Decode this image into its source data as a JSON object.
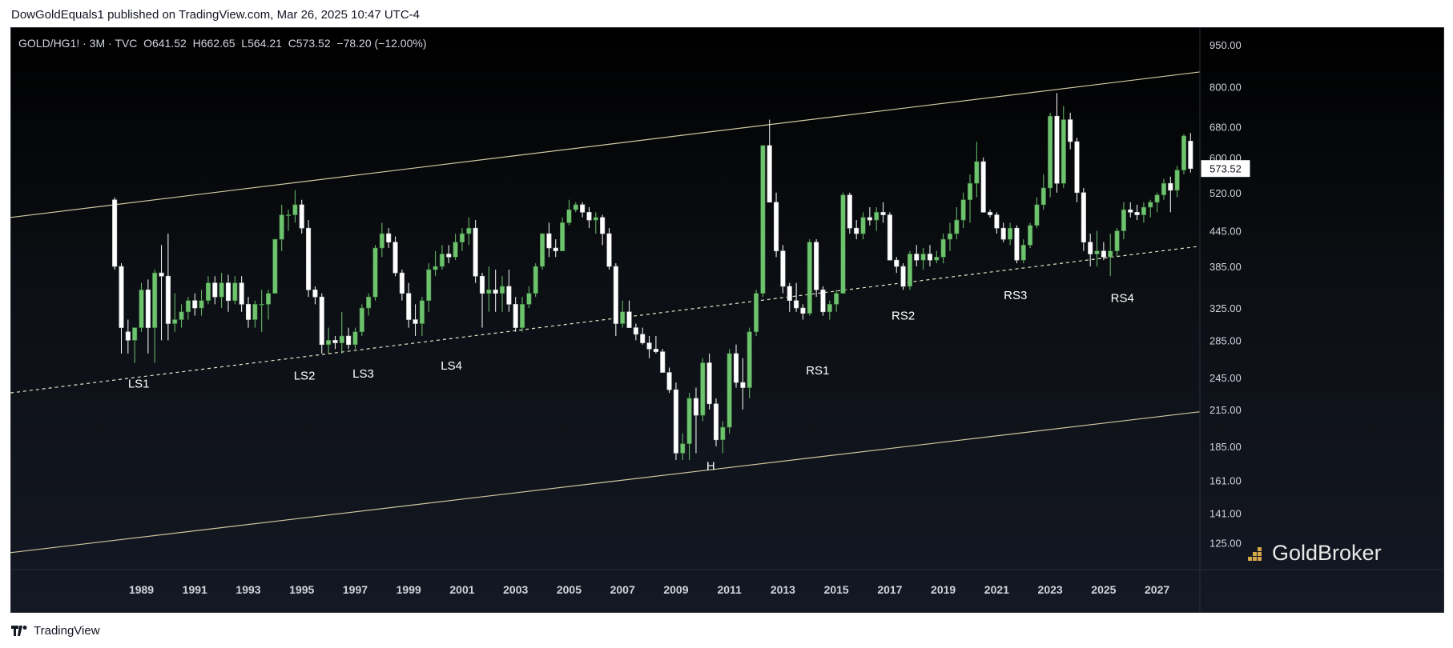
{
  "header": {
    "published_by": "DowGoldEquals1 published on TradingView.com, Mar 26, 2025 10:47 UTC-4"
  },
  "symbol": {
    "name": "GOLD/HG1! · 3M · TVC",
    "ohlc": "O641.52  H662.65  L564.21  C573.52  −78.20 (−12.00%)"
  },
  "watermark": "GoldBroker",
  "footer": {
    "brand": "TradingView"
  },
  "colors": {
    "up": "#6ec36e",
    "down": "#ffffff",
    "trendline": "#cfc9a0",
    "axis_text": "#d1d4dc",
    "price_tag_bg": "#ffffff"
  },
  "chart_data": {
    "type": "candlestick",
    "y_scale": "log",
    "ylim": [
      112,
      1020
    ],
    "xlim": [
      1984.6,
      2029.1
    ],
    "y_ticks": [
      950,
      800,
      680,
      600,
      520,
      445,
      385,
      325,
      285,
      245,
      215,
      185,
      161,
      141,
      125
    ],
    "x_ticks": [
      1989,
      1991,
      1993,
      1995,
      1997,
      1999,
      2001,
      2003,
      2005,
      2007,
      2009,
      2011,
      2013,
      2015,
      2017,
      2019,
      2021,
      2023,
      2025,
      2027
    ],
    "last_price": 573.52,
    "candles": [
      [
        1988.5,
        505,
        510,
        380,
        385
      ],
      [
        1988.75,
        385,
        390,
        270,
        300
      ],
      [
        1989.0,
        295,
        310,
        270,
        285
      ],
      [
        1989.25,
        285,
        300,
        260,
        300
      ],
      [
        1989.5,
        300,
        360,
        295,
        350
      ],
      [
        1989.75,
        350,
        365,
        270,
        300
      ],
      [
        1990.0,
        300,
        380,
        260,
        375
      ],
      [
        1990.25,
        375,
        420,
        285,
        370
      ],
      [
        1990.5,
        370,
        440,
        285,
        305
      ],
      [
        1990.75,
        305,
        345,
        295,
        310
      ],
      [
        1991.0,
        310,
        330,
        300,
        320
      ],
      [
        1991.25,
        320,
        340,
        310,
        335
      ],
      [
        1991.5,
        335,
        345,
        315,
        325
      ],
      [
        1991.75,
        325,
        350,
        315,
        335
      ],
      [
        1992.0,
        335,
        370,
        330,
        360
      ],
      [
        1992.25,
        360,
        370,
        330,
        340
      ],
      [
        1992.5,
        340,
        375,
        325,
        360
      ],
      [
        1992.75,
        360,
        372,
        320,
        335
      ],
      [
        1993.0,
        335,
        370,
        330,
        360
      ],
      [
        1993.25,
        360,
        370,
        320,
        330
      ],
      [
        1993.5,
        330,
        340,
        300,
        310
      ],
      [
        1993.75,
        310,
        335,
        300,
        330
      ],
      [
        1994.0,
        330,
        350,
        295,
        330
      ],
      [
        1994.25,
        330,
        350,
        310,
        345
      ],
      [
        1994.5,
        345,
        430,
        345,
        430
      ],
      [
        1994.75,
        430,
        495,
        410,
        475
      ],
      [
        1995.0,
        475,
        485,
        445,
        475
      ],
      [
        1995.25,
        475,
        525,
        460,
        495
      ],
      [
        1995.5,
        495,
        505,
        440,
        450
      ],
      [
        1995.75,
        450,
        465,
        340,
        350
      ],
      [
        1996.0,
        350,
        355,
        330,
        340
      ],
      [
        1996.25,
        340,
        345,
        270,
        280
      ],
      [
        1996.5,
        280,
        300,
        270,
        285
      ],
      [
        1996.75,
        285,
        290,
        275,
        282
      ],
      [
        1997.0,
        282,
        320,
        270,
        290
      ],
      [
        1997.25,
        290,
        300,
        275,
        280
      ],
      [
        1997.5,
        280,
        300,
        275,
        295
      ],
      [
        1997.75,
        295,
        330,
        290,
        325
      ],
      [
        1998.0,
        325,
        345,
        315,
        340
      ],
      [
        1998.25,
        340,
        420,
        335,
        415
      ],
      [
        1998.5,
        415,
        460,
        400,
        440
      ],
      [
        1998.75,
        440,
        450,
        415,
        425
      ],
      [
        1999.0,
        425,
        435,
        370,
        375
      ],
      [
        1999.25,
        375,
        380,
        335,
        345
      ],
      [
        1999.5,
        345,
        360,
        300,
        310
      ],
      [
        1999.75,
        310,
        330,
        290,
        305
      ],
      [
        2000.0,
        305,
        340,
        290,
        335
      ],
      [
        2000.25,
        335,
        390,
        320,
        380
      ],
      [
        2000.5,
        380,
        410,
        370,
        385
      ],
      [
        2000.75,
        385,
        420,
        380,
        405
      ],
      [
        2001.0,
        405,
        420,
        390,
        400
      ],
      [
        2001.25,
        400,
        440,
        395,
        425
      ],
      [
        2001.5,
        425,
        450,
        410,
        440
      ],
      [
        2001.75,
        440,
        470,
        420,
        450
      ],
      [
        2002.0,
        450,
        465,
        360,
        370
      ],
      [
        2002.25,
        370,
        375,
        300,
        345
      ],
      [
        2002.5,
        345,
        385,
        320,
        350
      ],
      [
        2002.75,
        350,
        380,
        320,
        345
      ],
      [
        2003.0,
        345,
        370,
        320,
        355
      ],
      [
        2003.25,
        355,
        380,
        320,
        330
      ],
      [
        2003.5,
        330,
        340,
        295,
        300
      ],
      [
        2003.75,
        300,
        340,
        295,
        330
      ],
      [
        2004.0,
        330,
        355,
        325,
        345
      ],
      [
        2004.25,
        345,
        390,
        340,
        385
      ],
      [
        2004.5,
        385,
        440,
        380,
        440
      ],
      [
        2004.75,
        440,
        460,
        400,
        415
      ],
      [
        2005.0,
        415,
        430,
        400,
        410
      ],
      [
        2005.25,
        410,
        470,
        410,
        460
      ],
      [
        2005.5,
        460,
        505,
        455,
        485
      ],
      [
        2005.75,
        485,
        500,
        480,
        495
      ],
      [
        2006.0,
        495,
        500,
        470,
        480
      ],
      [
        2006.25,
        480,
        490,
        450,
        465
      ],
      [
        2006.5,
        465,
        480,
        440,
        470
      ],
      [
        2006.75,
        470,
        475,
        420,
        440
      ],
      [
        2007.0,
        440,
        450,
        380,
        385
      ],
      [
        2007.25,
        385,
        390,
        290,
        305
      ],
      [
        2007.5,
        305,
        335,
        300,
        320
      ],
      [
        2007.75,
        320,
        335,
        300,
        300
      ],
      [
        2008.0,
        300,
        305,
        285,
        292
      ],
      [
        2008.25,
        292,
        300,
        280,
        282
      ],
      [
        2008.5,
        282,
        290,
        265,
        275
      ],
      [
        2008.75,
        275,
        290,
        270,
        272
      ],
      [
        2009.0,
        272,
        275,
        250,
        250
      ],
      [
        2009.25,
        250,
        255,
        230,
        233
      ],
      [
        2009.5,
        233,
        240,
        175,
        180
      ],
      [
        2009.75,
        180,
        195,
        175,
        187
      ],
      [
        2010.0,
        187,
        230,
        175,
        225
      ],
      [
        2010.25,
        225,
        235,
        180,
        210
      ],
      [
        2010.5,
        210,
        265,
        205,
        260
      ],
      [
        2010.75,
        260,
        270,
        215,
        220
      ],
      [
        2011.0,
        220,
        225,
        185,
        190
      ],
      [
        2011.25,
        190,
        205,
        180,
        200
      ],
      [
        2011.5,
        200,
        275,
        195,
        270
      ],
      [
        2011.75,
        270,
        280,
        235,
        240
      ],
      [
        2012.0,
        240,
        265,
        215,
        235
      ],
      [
        2012.25,
        235,
        300,
        225,
        295
      ],
      [
        2012.5,
        295,
        350,
        290,
        345
      ],
      [
        2012.75,
        345,
        630,
        340,
        630
      ],
      [
        2013.0,
        630,
        700,
        500,
        500
      ],
      [
        2013.25,
        500,
        520,
        400,
        410
      ],
      [
        2013.5,
        410,
        420,
        345,
        355
      ],
      [
        2013.75,
        355,
        360,
        320,
        335
      ],
      [
        2014.0,
        335,
        360,
        320,
        325
      ],
      [
        2014.25,
        325,
        330,
        310,
        318
      ],
      [
        2014.5,
        318,
        430,
        315,
        425
      ],
      [
        2014.75,
        425,
        430,
        340,
        350
      ],
      [
        2015.0,
        350,
        355,
        315,
        320
      ],
      [
        2015.25,
        320,
        335,
        310,
        330
      ],
      [
        2015.5,
        330,
        350,
        320,
        345
      ],
      [
        2015.75,
        345,
        520,
        345,
        515
      ],
      [
        2016.0,
        515,
        520,
        440,
        450
      ],
      [
        2016.25,
        450,
        465,
        430,
        440
      ],
      [
        2016.5,
        440,
        480,
        430,
        470
      ],
      [
        2016.75,
        470,
        490,
        455,
        465
      ],
      [
        2017.0,
        465,
        490,
        445,
        480
      ],
      [
        2017.25,
        480,
        500,
        460,
        475
      ],
      [
        2017.5,
        475,
        480,
        395,
        395
      ],
      [
        2017.75,
        395,
        400,
        375,
        385
      ],
      [
        2018.0,
        385,
        390,
        350,
        355
      ],
      [
        2018.25,
        355,
        410,
        350,
        405
      ],
      [
        2018.5,
        405,
        420,
        385,
        395
      ],
      [
        2018.75,
        395,
        415,
        380,
        405
      ],
      [
        2019.0,
        405,
        420,
        385,
        395
      ],
      [
        2019.25,
        395,
        410,
        390,
        400
      ],
      [
        2019.5,
        400,
        440,
        390,
        430
      ],
      [
        2019.75,
        430,
        460,
        410,
        440
      ],
      [
        2020.0,
        440,
        490,
        430,
        465
      ],
      [
        2020.25,
        465,
        520,
        450,
        505
      ],
      [
        2020.5,
        505,
        560,
        460,
        540
      ],
      [
        2020.75,
        540,
        640,
        510,
        590
      ],
      [
        2021.0,
        590,
        600,
        480,
        480
      ],
      [
        2021.25,
        480,
        485,
        470,
        475
      ],
      [
        2021.5,
        475,
        480,
        440,
        450
      ],
      [
        2021.75,
        450,
        460,
        425,
        430
      ],
      [
        2022.0,
        430,
        460,
        420,
        450
      ],
      [
        2022.25,
        450,
        455,
        390,
        395
      ],
      [
        2022.5,
        395,
        430,
        390,
        420
      ],
      [
        2022.75,
        420,
        460,
        415,
        455
      ],
      [
        2023.0,
        455,
        510,
        450,
        495
      ],
      [
        2023.25,
        495,
        560,
        485,
        530
      ],
      [
        2023.5,
        530,
        720,
        510,
        710
      ],
      [
        2023.75,
        710,
        780,
        520,
        540
      ],
      [
        2024.0,
        540,
        740,
        530,
        700
      ],
      [
        2024.25,
        700,
        720,
        620,
        640
      ],
      [
        2024.5,
        640,
        650,
        500,
        520
      ],
      [
        2024.75,
        520,
        530,
        410,
        425
      ],
      [
        2025.0,
        425,
        440,
        385,
        405
      ],
      [
        2025.25,
        405,
        445,
        385,
        410
      ],
      [
        2025.5,
        410,
        425,
        395,
        400
      ],
      [
        2025.75,
        400,
        440,
        370,
        410
      ],
      [
        2026.0,
        410,
        450,
        400,
        445
      ],
      [
        2026.25,
        445,
        500,
        430,
        485
      ],
      [
        2026.5,
        485,
        500,
        470,
        480
      ],
      [
        2026.75,
        480,
        495,
        465,
        475
      ],
      [
        2027.0,
        475,
        500,
        460,
        490
      ],
      [
        2027.25,
        490,
        505,
        470,
        500
      ],
      [
        2027.5,
        500,
        520,
        480,
        515
      ],
      [
        2027.75,
        515,
        550,
        505,
        540
      ],
      [
        2028.0,
        540,
        555,
        480,
        525
      ],
      [
        2028.25,
        525,
        580,
        510,
        570
      ],
      [
        2028.5,
        570,
        660,
        560,
        655
      ],
      [
        2028.75,
        641.52,
        662.65,
        564.21,
        573.52
      ]
    ],
    "trendlines": [
      {
        "style": "solid",
        "points": [
          [
            1984.6,
            470
          ],
          [
            2029.1,
            850
          ]
        ]
      },
      {
        "style": "dashed",
        "points": [
          [
            1984.6,
            230
          ],
          [
            2029.1,
            418
          ]
        ]
      },
      {
        "style": "solid",
        "points": [
          [
            1984.6,
            120
          ],
          [
            2029.1,
            213
          ]
        ]
      }
    ],
    "annotations": [
      {
        "text": "LS1",
        "x": 1989.4,
        "y": 235
      },
      {
        "text": "LS2",
        "x": 1995.6,
        "y": 243
      },
      {
        "text": "LS3",
        "x": 1997.8,
        "y": 245
      },
      {
        "text": "LS4",
        "x": 2001.1,
        "y": 253
      },
      {
        "text": "H",
        "x": 2010.8,
        "y": 168
      },
      {
        "text": "RS1",
        "x": 2014.8,
        "y": 248
      },
      {
        "text": "RS2",
        "x": 2018.0,
        "y": 310
      },
      {
        "text": "RS3",
        "x": 2022.2,
        "y": 337
      },
      {
        "text": "RS4",
        "x": 2026.2,
        "y": 333
      }
    ]
  }
}
